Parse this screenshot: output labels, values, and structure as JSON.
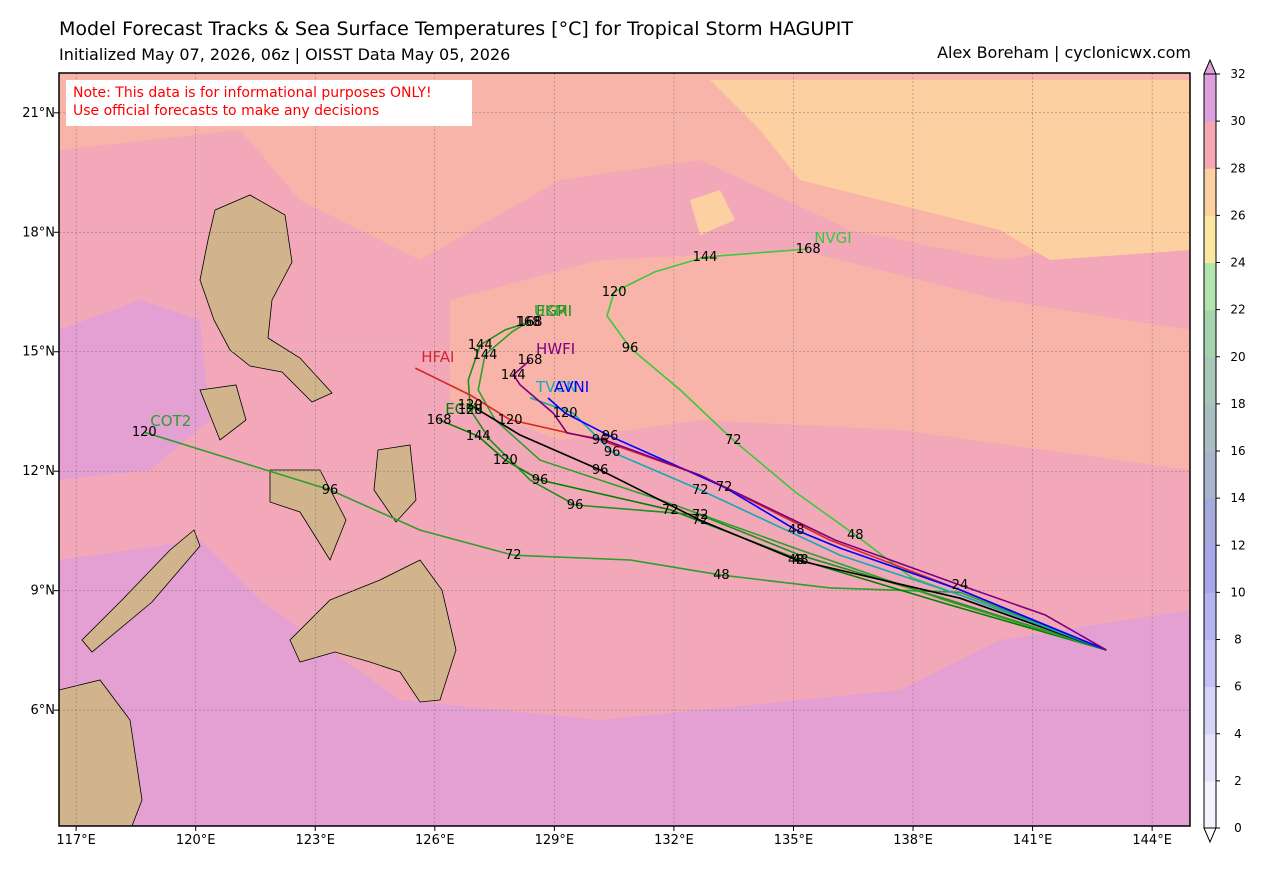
{
  "map": {
    "title": "Model Forecast Tracks & Sea Surface Temperatures [°C] for Tropical Storm HAGUPIT",
    "subtitle": "Initialized May 07, 2026, 06z | OISST Data May 05, 2026",
    "credit": "Alex Boreham | cyclonicwx.com",
    "note": [
      "Note: This data is for informational purposes ONLY!",
      "Use official forecasts to make any decisions"
    ],
    "lon_range": [
      116.57,
      144.95
    ],
    "lat_range": [
      3.09,
      22.0
    ],
    "grid": true,
    "lon_ticks": [
      {
        "value": 117,
        "label": "117°E"
      },
      {
        "value": 120,
        "label": "120°E"
      },
      {
        "value": 123,
        "label": "123°E"
      },
      {
        "value": 126,
        "label": "126°E"
      },
      {
        "value": 129,
        "label": "129°E"
      },
      {
        "value": 132,
        "label": "132°E"
      },
      {
        "value": 135,
        "label": "135°E"
      },
      {
        "value": 138,
        "label": "138°E"
      },
      {
        "value": 141,
        "label": "141°E"
      },
      {
        "value": 144,
        "label": "144°E"
      }
    ],
    "lat_ticks": [
      {
        "value": 6,
        "label": "6°N"
      },
      {
        "value": 9,
        "label": "9°N"
      },
      {
        "value": 12,
        "label": "12°N"
      },
      {
        "value": 15,
        "label": "15°N"
      },
      {
        "value": 18,
        "label": "18°N"
      },
      {
        "value": 21,
        "label": "21°N"
      }
    ],
    "colorbar": {
      "range": [
        0,
        32
      ],
      "ticks": [
        0,
        2,
        4,
        6,
        8,
        10,
        12,
        14,
        16,
        18,
        20,
        22,
        24,
        26,
        28,
        30,
        32
      ],
      "colors": [
        "#f4f2fb",
        "#e6e4f8",
        "#d6d4f6",
        "#c4c2f4",
        "#b6b4f0",
        "#a9a6ea",
        "#a5a9dc",
        "#a8b4cc",
        "#a9bec2",
        "#a8c7b8",
        "#a5d3ad",
        "#b2e5ae",
        "#fbe8a0",
        "#fdd0a2",
        "#f5a8b3",
        "#dca0dc"
      ]
    },
    "tracks": [
      {
        "name": "NVGI",
        "color": "#3cc83c",
        "points": [
          {
            "lon": 142.85,
            "lat": 7.51
          },
          {
            "lon": 139.18,
            "lat": 8.89
          },
          {
            "lon": 137.98,
            "lat": 9.32
          },
          {
            "lon": 136.55,
            "lat": 10.4,
            "hour": 48
          },
          {
            "lon": 135.04,
            "lat": 11.48
          },
          {
            "lon": 133.49,
            "lat": 12.78,
            "hour": 72
          },
          {
            "lon": 132.16,
            "lat": 14.04
          },
          {
            "lon": 130.9,
            "lat": 15.1,
            "hour": 96
          },
          {
            "lon": 130.32,
            "lat": 15.9
          },
          {
            "lon": 130.5,
            "lat": 16.5,
            "hour": 120
          },
          {
            "lon": 131.53,
            "lat": 17.01
          },
          {
            "lon": 132.78,
            "lat": 17.38,
            "hour": 144
          },
          {
            "lon": 135.37,
            "lat": 17.58,
            "hour": 168
          }
        ]
      },
      {
        "name": "COT2",
        "color": "#2e9e2e",
        "points": [
          {
            "lon": 142.85,
            "lat": 7.51
          },
          {
            "lon": 139.18,
            "lat": 8.96
          },
          {
            "lon": 135.92,
            "lat": 9.07
          },
          {
            "lon": 133.19,
            "lat": 9.39,
            "hour": 48
          },
          {
            "lon": 130.9,
            "lat": 9.77
          },
          {
            "lon": 127.97,
            "lat": 9.89,
            "hour": 72
          },
          {
            "lon": 125.63,
            "lat": 10.52
          },
          {
            "lon": 123.37,
            "lat": 11.53,
            "hour": 96
          },
          {
            "lon": 118.71,
            "lat": 12.98,
            "hour": 120
          }
        ]
      },
      {
        "name": "ECMI",
        "color": "#008000",
        "points": [
          {
            "lon": 142.85,
            "lat": 7.51
          },
          {
            "lon": 138.93,
            "lat": 8.64
          },
          {
            "lon": 135.17,
            "lat": 9.77,
            "hour": 48
          },
          {
            "lon": 131.91,
            "lat": 11.03,
            "hour": 72
          },
          {
            "lon": 128.64,
            "lat": 11.78,
            "hour": 96
          },
          {
            "lon": 127.77,
            "lat": 12.28,
            "hour": 120
          },
          {
            "lon": 127.09,
            "lat": 12.88,
            "hour": 144
          },
          {
            "lon": 126.11,
            "lat": 13.29,
            "hour": 168
          }
        ]
      },
      {
        "name": "EGRI",
        "color": "#1f8f1f",
        "points": [
          {
            "lon": 142.85,
            "lat": 7.51
          },
          {
            "lon": 138.93,
            "lat": 8.76
          },
          {
            "lon": 135.17,
            "lat": 9.89
          },
          {
            "lon": 132.66,
            "lat": 10.9,
            "hour": 72
          },
          {
            "lon": 129.52,
            "lat": 11.15,
            "hour": 96
          },
          {
            "lon": 128.39,
            "lat": 11.78
          },
          {
            "lon": 127.39,
            "lat": 12.78
          },
          {
            "lon": 126.89,
            "lat": 13.54,
            "hour": 120
          },
          {
            "lon": 126.84,
            "lat": 14.29
          },
          {
            "lon": 127.14,
            "lat": 15.17,
            "hour": 144
          },
          {
            "lon": 127.77,
            "lat": 15.55
          },
          {
            "lon": 128.39,
            "lat": 15.75,
            "hour": 168
          }
        ]
      },
      {
        "name": "UKMI",
        "color": "#2ca02c",
        "points": [
          {
            "lon": 142.85,
            "lat": 7.51
          },
          {
            "lon": 138.81,
            "lat": 8.76
          },
          {
            "lon": 135.17,
            "lat": 10.02
          },
          {
            "lon": 131.65,
            "lat": 11.28
          },
          {
            "lon": 128.64,
            "lat": 12.28
          },
          {
            "lon": 127.51,
            "lat": 13.29
          },
          {
            "lon": 127.09,
            "lat": 14.04
          },
          {
            "lon": 127.26,
            "lat": 14.92,
            "hour": 144
          },
          {
            "lon": 127.94,
            "lat": 15.5
          },
          {
            "lon": 128.34,
            "lat": 15.75,
            "hour": 168
          }
        ]
      },
      {
        "color": "#000000",
        "points": [
          {
            "lon": 142.85,
            "lat": 7.51
          },
          {
            "lon": 139.18,
            "lat": 8.81
          },
          {
            "lon": 135.07,
            "lat": 9.77,
            "hour": 48
          },
          {
            "lon": 132.66,
            "lat": 10.77,
            "hour": 72
          },
          {
            "lon": 130.15,
            "lat": 12.03,
            "hour": 96
          },
          {
            "lon": 128.14,
            "lat": 12.91
          },
          {
            "lon": 126.89,
            "lat": 13.66,
            "hour": 120
          }
        ]
      },
      {
        "name": "HFAI",
        "color": "#d62728",
        "points": [
          {
            "lon": 142.85,
            "lat": 7.51
          },
          {
            "lon": 139.18,
            "lat": 9.02
          },
          {
            "lon": 135.92,
            "lat": 10.27
          },
          {
            "lon": 132.66,
            "lat": 11.9
          },
          {
            "lon": 130.15,
            "lat": 12.78,
            "hour": 96
          },
          {
            "lon": 127.89,
            "lat": 13.29,
            "hour": 120
          },
          {
            "lon": 126.89,
            "lat": 13.91
          },
          {
            "lon": 125.51,
            "lat": 14.59
          }
        ]
      },
      {
        "name": "TVCN",
        "color": "#17a9b0",
        "points": [
          {
            "lon": 142.85,
            "lat": 7.51
          },
          {
            "lon": 139.18,
            "lat": 8.89
          },
          {
            "lon": 136.17,
            "lat": 9.89
          },
          {
            "lon": 132.66,
            "lat": 11.53,
            "hour": 72
          },
          {
            "lon": 130.45,
            "lat": 12.48,
            "hour": 96
          },
          {
            "lon": 129.47,
            "lat": 13.46
          },
          {
            "lon": 128.39,
            "lat": 13.84
          }
        ]
      },
      {
        "name": "AVNI",
        "color": "#0000ff",
        "points": [
          {
            "lon": 142.85,
            "lat": 7.51
          },
          {
            "lon": 139.18,
            "lat": 9.02
          },
          {
            "lon": 136.17,
            "lat": 10.07
          },
          {
            "lon": 135.07,
            "lat": 10.52,
            "hour": 48
          },
          {
            "lon": 133.26,
            "lat": 11.6,
            "hour": 72
          },
          {
            "lon": 130.4,
            "lat": 12.88,
            "hour": 96
          },
          {
            "lon": 129.27,
            "lat": 13.46,
            "hour": 120
          },
          {
            "lon": 128.84,
            "lat": 13.84
          }
        ]
      },
      {
        "name": "HWFI",
        "color": "#800080",
        "points": [
          {
            "lon": 142.85,
            "lat": 7.51
          },
          {
            "lon": 141.32,
            "lat": 8.39
          },
          {
            "lon": 139.18,
            "lat": 9.14,
            "hour": 24
          },
          {
            "lon": 136.05,
            "lat": 10.27
          },
          {
            "lon": 132.66,
            "lat": 11.9
          },
          {
            "lon": 130.27,
            "lat": 12.78
          },
          {
            "lon": 129.32,
            "lat": 12.96
          },
          {
            "lon": 128.97,
            "lat": 13.46
          },
          {
            "lon": 128.14,
            "lat": 14.17
          },
          {
            "lon": 127.97,
            "lat": 14.42,
            "hour": 144
          },
          {
            "lon": 128.39,
            "lat": 14.79,
            "hour": 168
          }
        ]
      }
    ]
  }
}
